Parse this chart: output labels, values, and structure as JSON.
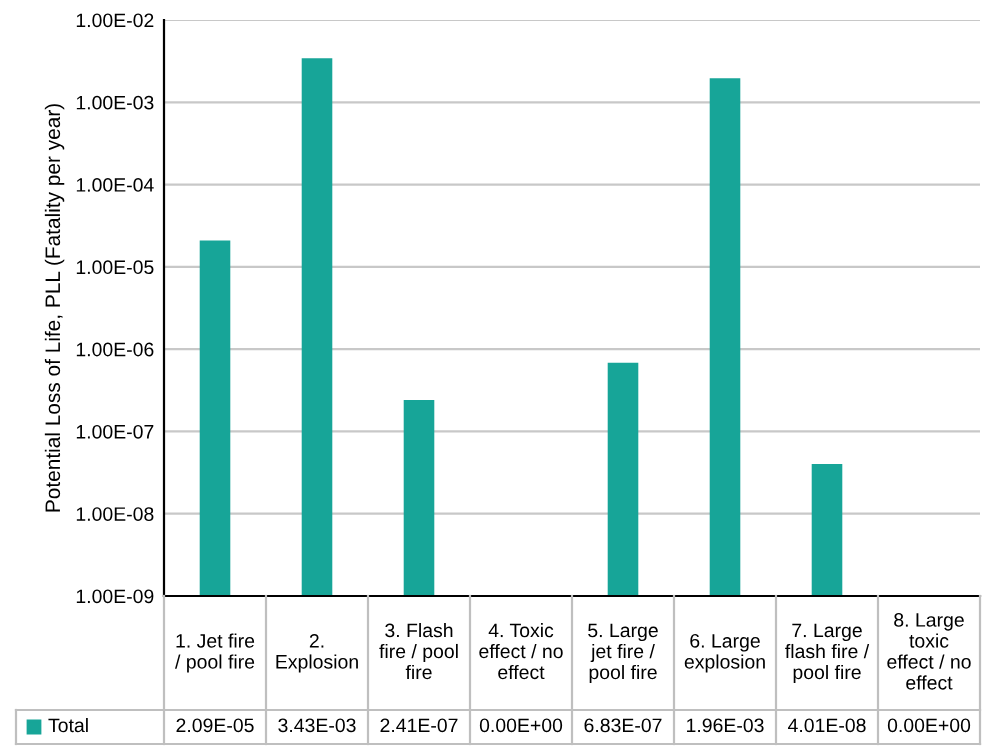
{
  "chart_data": {
    "type": "bar",
    "ylabel": "Potential Loss of Life, PLL (Fatality per year)",
    "categories": [
      "1. Jet fire / pool fire",
      "2. Explosion",
      "3. Flash fire / pool fire",
      "4. Toxic effect / no effect",
      "5. Large jet fire / pool fire",
      "6. Large explosion",
      "7. Large flash fire / pool fire",
      "8. Large toxic effect / no effect"
    ],
    "series": [
      {
        "name": "Total",
        "color": "#17a598",
        "values": [
          2.09e-05,
          0.00343,
          2.41e-07,
          null,
          6.83e-07,
          0.00196,
          4.01e-08,
          null
        ],
        "value_labels": [
          "2.09E-05",
          "3.43E-03",
          "2.41E-07",
          "0.00E+00",
          "6.83E-07",
          "1.96E-03",
          "4.01E-08",
          "0.00E+00"
        ]
      }
    ],
    "log": "y",
    "ylim": [
      1e-09,
      0.01
    ],
    "yticks": [
      {
        "value": 1e-09,
        "label": "1.00E-09"
      },
      {
        "value": 1e-08,
        "label": "1.00E-08"
      },
      {
        "value": 1e-07,
        "label": "1.00E-07"
      },
      {
        "value": 1e-06,
        "label": "1.00E-06"
      },
      {
        "value": 1e-05,
        "label": "1.00E-05"
      },
      {
        "value": 0.0001,
        "label": "1.00E-04"
      },
      {
        "value": 0.001,
        "label": "1.00E-03"
      },
      {
        "value": 0.01,
        "label": "1.00E-02"
      }
    ],
    "grid": "y",
    "legend": "bottom"
  }
}
